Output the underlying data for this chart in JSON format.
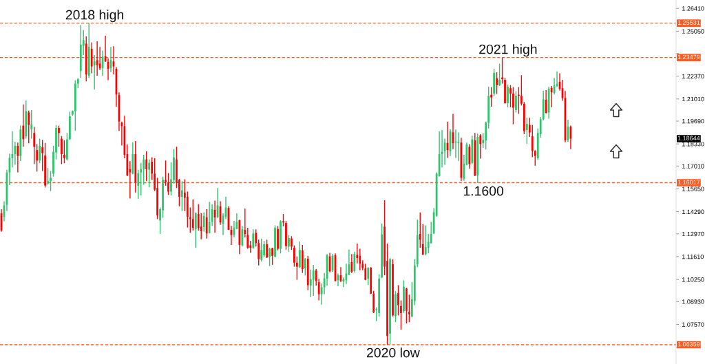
{
  "chart_data": {
    "type": "candlestick",
    "categories": [
      null,
      null,
      null,
      null,
      null,
      null,
      null,
      null,
      null,
      null,
      null,
      null,
      null,
      null,
      null,
      null,
      null,
      null,
      null,
      null,
      null,
      null,
      null,
      null,
      null,
      null,
      null,
      null,
      null,
      null,
      null,
      null,
      null,
      null,
      null,
      null,
      null,
      null,
      null,
      null,
      null,
      null,
      null,
      null,
      null,
      null,
      null,
      null,
      null,
      null,
      null,
      null,
      null,
      null,
      null,
      null,
      null,
      null,
      null,
      null,
      null,
      null,
      null,
      null,
      null,
      null,
      null,
      null,
      null,
      null,
      null,
      null,
      null,
      null,
      null,
      null,
      null,
      null,
      null,
      null,
      null,
      null,
      null,
      null,
      null,
      null,
      null,
      null,
      null,
      null,
      null,
      null,
      null,
      null,
      null,
      null,
      null,
      null,
      null,
      null,
      null,
      null,
      null,
      null,
      null,
      null,
      null,
      null,
      null,
      null,
      null,
      null,
      null,
      null,
      null,
      null,
      null,
      null,
      null,
      null,
      null,
      null,
      null,
      null,
      null,
      null,
      null,
      null,
      null,
      null,
      null,
      null,
      null,
      null,
      null,
      null,
      null,
      null,
      null,
      null,
      null,
      null,
      null,
      null,
      null,
      null,
      null,
      null,
      null,
      null,
      null,
      null,
      null,
      null,
      null,
      null,
      null,
      null,
      null,
      null,
      null,
      null,
      null,
      null,
      null,
      null,
      null,
      null,
      null,
      null,
      null,
      null,
      null,
      null,
      null,
      null,
      null,
      null,
      null,
      null,
      null,
      null,
      null,
      null,
      null,
      null,
      null,
      null,
      null,
      null,
      null,
      null,
      null,
      null,
      null,
      null,
      null,
      null,
      null,
      null,
      null,
      null,
      null,
      null,
      null,
      null,
      null,
      null,
      null,
      null,
      null,
      null,
      null,
      null,
      null,
      null,
      null,
      null,
      null,
      null,
      null,
      null,
      null,
      null,
      null,
      null,
      null,
      null,
      null,
      null,
      null,
      null,
      null,
      null,
      null,
      null,
      null,
      null,
      null,
      null,
      null,
      null,
      null,
      null,
      null,
      null,
      null
    ],
    "ohlc": [
      [
        1.1419,
        1.1444,
        1.131,
        1.1317
      ],
      [
        1.1399,
        1.1491,
        1.1372,
        1.1467
      ],
      [
        1.147,
        1.1679,
        1.1433,
        1.1663
      ],
      [
        1.1663,
        1.1775,
        1.1588,
        1.175
      ],
      [
        1.1748,
        1.1909,
        1.1693,
        1.1772
      ],
      [
        1.1772,
        1.1846,
        1.1709,
        1.1822
      ],
      [
        1.1822,
        1.1841,
        1.1663,
        1.1761
      ],
      [
        1.1761,
        1.1942,
        1.1731,
        1.1919
      ],
      [
        1.1942,
        1.2069,
        1.1816,
        1.1861
      ],
      [
        1.1878,
        1.2092,
        1.1864,
        1.2029
      ],
      [
        1.2021,
        1.2032,
        1.1837,
        1.1946
      ],
      [
        1.1921,
        1.2035,
        1.1864,
        1.1949
      ],
      [
        1.1898,
        1.1935,
        1.1713,
        1.1816
      ],
      [
        1.1796,
        1.1832,
        1.1668,
        1.1734
      ],
      [
        1.1734,
        1.1864,
        1.1718,
        1.1822
      ],
      [
        1.1813,
        1.1857,
        1.1672,
        1.1778
      ],
      [
        1.1764,
        1.1839,
        1.1573,
        1.1585
      ],
      [
        1.1597,
        1.1689,
        1.159,
        1.1611
      ],
      [
        1.1611,
        1.1672,
        1.1552,
        1.1631
      ],
      [
        1.1656,
        1.1822,
        1.1638,
        1.1786
      ],
      [
        1.1782,
        1.1946,
        1.1741,
        1.1928
      ],
      [
        1.1928,
        1.1942,
        1.1816,
        1.1898
      ],
      [
        1.1864,
        1.188,
        1.1713,
        1.1772
      ],
      [
        1.1768,
        1.1854,
        1.1718,
        1.1748
      ],
      [
        1.1741,
        1.1898,
        1.1734,
        1.186
      ],
      [
        1.1861,
        1.2025,
        1.1857,
        1.1998
      ],
      [
        1.2008,
        1.2032,
        1.2001,
        1.2029
      ],
      [
        1.2028,
        1.2213,
        1.1912,
        1.2192
      ],
      [
        1.2192,
        1.2226,
        1.2165,
        1.2219
      ],
      [
        1.2267,
        1.2541,
        1.2226,
        1.2425
      ],
      [
        1.2418,
        1.2513,
        1.2363,
        1.2452
      ],
      [
        1.2431,
        1.2475,
        1.2206,
        1.2247
      ],
      [
        1.224,
        1.25531,
        1.2226,
        1.2411
      ],
      [
        1.24,
        1.2438,
        1.2254,
        1.2295
      ],
      [
        1.2302,
        1.2363,
        1.2158,
        1.2325
      ],
      [
        1.2333,
        1.2445,
        1.224,
        1.2302
      ],
      [
        1.2312,
        1.2411,
        1.2274,
        1.2284
      ],
      [
        1.2284,
        1.239,
        1.224,
        1.2352
      ],
      [
        1.2356,
        1.2479,
        1.2322,
        1.2325
      ],
      [
        1.2322,
        1.2343,
        1.2213,
        1.2281
      ],
      [
        1.2284,
        1.2411,
        1.226,
        1.2333
      ],
      [
        1.2325,
        1.2415,
        1.2247,
        1.2295
      ],
      [
        1.2281,
        1.2291,
        1.2055,
        1.2128
      ],
      [
        1.2124,
        1.214,
        1.1912,
        1.1966
      ],
      [
        1.196,
        1.1966,
        1.1823,
        1.1939
      ],
      [
        1.1939,
        1.2001,
        1.1748,
        1.1768
      ],
      [
        1.1772,
        1.183,
        1.1641,
        1.1645
      ],
      [
        1.1682,
        1.173,
        1.1508,
        1.1663
      ],
      [
        1.1656,
        1.1843,
        1.1652,
        1.1772
      ],
      [
        1.1772,
        1.185,
        1.1543,
        1.1604
      ],
      [
        1.1584,
        1.1679,
        1.1506,
        1.1659
      ],
      [
        1.1663,
        1.172,
        1.1526,
        1.1683
      ],
      [
        1.1682,
        1.1768,
        1.159,
        1.1741
      ],
      [
        1.1741,
        1.1789,
        1.1611,
        1.1682
      ],
      [
        1.1679,
        1.1741,
        1.1574,
        1.172
      ],
      [
        1.1727,
        1.1753,
        1.1618,
        1.1656
      ],
      [
        1.1656,
        1.1748,
        1.1552,
        1.156
      ],
      [
        1.157,
        1.1631,
        1.1385,
        1.1406
      ],
      [
        1.1376,
        1.1454,
        1.1296,
        1.1444
      ],
      [
        1.1437,
        1.1638,
        1.1392,
        1.162
      ],
      [
        1.1618,
        1.1734,
        1.1584,
        1.1604
      ],
      [
        1.1601,
        1.1659,
        1.1529,
        1.1549
      ],
      [
        1.1549,
        1.1724,
        1.1526,
        1.1622
      ],
      [
        1.1618,
        1.1802,
        1.1597,
        1.1753
      ],
      [
        1.1741,
        1.1816,
        1.157,
        1.1601
      ],
      [
        1.1618,
        1.1625,
        1.1461,
        1.1518
      ],
      [
        1.1518,
        1.1611,
        1.1433,
        1.1556
      ],
      [
        1.1543,
        1.1622,
        1.1433,
        1.1512
      ],
      [
        1.1518,
        1.1549,
        1.1335,
        1.1399
      ],
      [
        1.1395,
        1.1454,
        1.1303,
        1.1385
      ],
      [
        1.1385,
        1.1502,
        1.1317,
        1.1333
      ],
      [
        1.1324,
        1.1426,
        1.1214,
        1.1419
      ],
      [
        1.1415,
        1.1474,
        1.1317,
        1.1333
      ],
      [
        1.134,
        1.1419,
        1.1265,
        1.1313
      ],
      [
        1.1337,
        1.1426,
        1.131,
        1.1403
      ],
      [
        1.1395,
        1.1444,
        1.1269,
        1.1299
      ],
      [
        1.1301,
        1.1488,
        1.1299,
        1.1368
      ],
      [
        1.1368,
        1.1474,
        1.1344,
        1.1444
      ],
      [
        1.144,
        1.1495,
        1.1303,
        1.1395
      ],
      [
        1.1395,
        1.157,
        1.1392,
        1.1467
      ],
      [
        1.1461,
        1.1491,
        1.1351,
        1.1365
      ],
      [
        1.1358,
        1.1419,
        1.129,
        1.1406
      ],
      [
        1.1399,
        1.1518,
        1.1385,
        1.1454
      ],
      [
        1.1451,
        1.1461,
        1.132,
        1.1321
      ],
      [
        1.1321,
        1.1344,
        1.1231,
        1.129
      ],
      [
        1.129,
        1.1374,
        1.1276,
        1.1331
      ],
      [
        1.1326,
        1.1419,
        1.1324,
        1.1368
      ],
      [
        1.1378,
        1.1381,
        1.1176,
        1.1231
      ],
      [
        1.1228,
        1.1344,
        1.1221,
        1.1324
      ],
      [
        1.1321,
        1.1447,
        1.1276,
        1.1296
      ],
      [
        1.129,
        1.1333,
        1.1208,
        1.1214
      ],
      [
        1.1228,
        1.1255,
        1.1183,
        1.1214
      ],
      [
        1.1212,
        1.1324,
        1.1208,
        1.1299
      ],
      [
        1.1303,
        1.1324,
        1.1221,
        1.1242
      ],
      [
        1.1242,
        1.1262,
        1.1109,
        1.1146
      ],
      [
        1.1142,
        1.1269,
        1.1132,
        1.1201
      ],
      [
        1.1169,
        1.1255,
        1.116,
        1.1235
      ],
      [
        1.1235,
        1.1262,
        1.1153,
        1.1156
      ],
      [
        1.116,
        1.1214,
        1.1105,
        1.1208
      ],
      [
        1.1212,
        1.1214,
        1.1112,
        1.1166
      ],
      [
        1.116,
        1.1348,
        1.1157,
        1.1333
      ],
      [
        1.1326,
        1.1344,
        1.1198,
        1.1208
      ],
      [
        1.1208,
        1.1378,
        1.118,
        1.1372
      ],
      [
        1.1372,
        1.1415,
        1.1342,
        1.1365
      ],
      [
        1.1362,
        1.1374,
        1.1203,
        1.1224
      ],
      [
        1.1221,
        1.129,
        1.1191,
        1.1272
      ],
      [
        1.1269,
        1.1283,
        1.1201,
        1.1221
      ],
      [
        1.1214,
        1.1228,
        1.1101,
        1.1125
      ],
      [
        1.1125,
        1.1162,
        1.1023,
        1.1101
      ],
      [
        1.1098,
        1.1251,
        1.1094,
        1.1201
      ],
      [
        1.1198,
        1.1231,
        1.1064,
        1.1087
      ],
      [
        1.1091,
        1.1153,
        1.1048,
        1.1146
      ],
      [
        1.1149,
        1.1166,
        1.0961,
        1.0991
      ],
      [
        1.0989,
        1.1084,
        1.092,
        1.1027
      ],
      [
        1.1023,
        1.1112,
        1.0927,
        1.1078
      ],
      [
        1.1078,
        1.1087,
        1.0989,
        1.1016
      ],
      [
        1.1009,
        1.103,
        1.09,
        1.0937
      ],
      [
        1.0937,
        1.1002,
        1.0875,
        1.0978
      ],
      [
        1.0978,
        1.1064,
        1.0937,
        1.1032
      ],
      [
        1.103,
        1.1176,
        1.0989,
        1.1171
      ],
      [
        1.1162,
        1.1183,
        1.1068,
        1.1073
      ],
      [
        1.1078,
        1.1176,
        1.1071,
        1.1166
      ],
      [
        1.1169,
        1.118,
        1.1013,
        1.1016
      ],
      [
        1.102,
        1.106,
        1.0985,
        1.105
      ],
      [
        1.105,
        1.1098,
        1.1009,
        1.1016
      ],
      [
        1.1013,
        1.1037,
        1.0979,
        1.1026
      ],
      [
        1.102,
        1.1119,
        1.0998,
        1.106
      ],
      [
        1.1054,
        1.1203,
        1.105,
        1.1115
      ],
      [
        1.1128,
        1.1176,
        1.1064,
        1.1071
      ],
      [
        1.1075,
        1.119,
        1.1067,
        1.1176
      ],
      [
        1.1173,
        1.1239,
        1.1121,
        1.1153
      ],
      [
        1.1166,
        1.1208,
        1.108,
        1.1119
      ],
      [
        1.1119,
        1.1139,
        1.108,
        1.1091
      ],
      [
        1.1091,
        1.1119,
        1.102,
        1.1023
      ],
      [
        1.103,
        1.1098,
        1.0993,
        1.1095
      ],
      [
        1.1095,
        1.1098,
        1.0938,
        1.0941
      ],
      [
        1.0941,
        1.0957,
        1.0825,
        1.0829
      ],
      [
        1.0842,
        1.0859,
        1.0777,
        1.0848
      ],
      [
        1.0825,
        1.1057,
        1.0804,
        1.103
      ],
      [
        1.1037,
        1.1358,
        1.1034,
        1.1294
      ],
      [
        1.134,
        1.1497,
        1.105,
        1.1101
      ],
      [
        1.1135,
        1.1239,
        1.06359,
        1.0688
      ],
      [
        1.0702,
        1.1153,
        1.0638,
        1.1146
      ],
      [
        1.1116,
        1.1146,
        1.0804,
        1.0811
      ],
      [
        1.0807,
        1.0955,
        1.077,
        1.0937
      ],
      [
        1.0944,
        1.0991,
        1.0811,
        1.0872
      ],
      [
        1.0866,
        1.09,
        1.0726,
        1.0825
      ],
      [
        1.0836,
        1.102,
        1.0825,
        1.0982
      ],
      [
        1.0971,
        1.0975,
        1.0763,
        1.0838
      ],
      [
        1.0831,
        1.0934,
        1.077,
        1.0818
      ],
      [
        1.0804,
        1.1009,
        1.08,
        1.0907
      ],
      [
        1.0896,
        1.1146,
        1.0872,
        1.1108
      ],
      [
        1.1115,
        1.1381,
        1.1098,
        1.129
      ],
      [
        1.1296,
        1.1424,
        1.1214,
        1.1262
      ],
      [
        1.1235,
        1.1354,
        1.1171,
        1.1173
      ],
      [
        1.1176,
        1.1348,
        1.1169,
        1.1218
      ],
      [
        1.1214,
        1.1296,
        1.118,
        1.1249
      ],
      [
        1.1242,
        1.1368,
        1.1239,
        1.1296
      ],
      [
        1.1301,
        1.145,
        1.1296,
        1.1426
      ],
      [
        1.1406,
        1.1663,
        1.1399,
        1.1656
      ],
      [
        1.1641,
        1.1909,
        1.1638,
        1.1772
      ],
      [
        1.1772,
        1.1916,
        1.1693,
        1.1786
      ],
      [
        1.1789,
        1.1864,
        1.1709,
        1.1841
      ],
      [
        1.1839,
        1.1966,
        1.175,
        1.1796
      ],
      [
        1.1789,
        1.1921,
        1.1761,
        1.1908
      ],
      [
        1.1902,
        1.2012,
        1.1802,
        1.1837
      ],
      [
        1.1841,
        1.1919,
        1.175,
        1.1848
      ],
      [
        1.1837,
        1.1901,
        1.1731,
        1.1843
      ],
      [
        1.1841,
        1.1871,
        1.1611,
        1.1631
      ],
      [
        1.1625,
        1.1768,
        1.1613,
        1.1716
      ],
      [
        1.1709,
        1.1841,
        1.1704,
        1.183
      ],
      [
        1.1816,
        1.1832,
        1.1686,
        1.1713
      ],
      [
        1.172,
        1.1882,
        1.1713,
        1.186
      ],
      [
        1.1854,
        1.1898,
        1.1641,
        1.1645
      ],
      [
        1.1645,
        1.1894,
        1.16,
        1.1875
      ],
      [
        1.1884,
        1.1891,
        1.1745,
        1.1832
      ],
      [
        1.1837,
        1.1898,
        1.1809,
        1.1857
      ],
      [
        1.1853,
        1.1966,
        1.18,
        1.196
      ],
      [
        1.196,
        1.2174,
        1.1925,
        1.212
      ],
      [
        1.2126,
        1.2172,
        1.2055,
        1.211
      ],
      [
        1.2133,
        1.2281,
        1.2117,
        1.2256
      ],
      [
        1.2224,
        1.226,
        1.2131,
        1.2183
      ],
      [
        1.2183,
        1.2312,
        1.2178,
        1.2215
      ],
      [
        1.2229,
        1.23479,
        1.2192,
        1.2219
      ],
      [
        1.2215,
        1.2226,
        1.2073,
        1.2076
      ],
      [
        1.2076,
        1.2188,
        1.2051,
        1.2174
      ],
      [
        1.2165,
        1.2183,
        1.2051,
        1.2133
      ],
      [
        1.2133,
        1.2172,
        1.195,
        1.2049
      ],
      [
        1.2035,
        1.2148,
        1.2021,
        1.212
      ],
      [
        1.2126,
        1.2172,
        1.2012,
        1.212
      ],
      [
        1.212,
        1.2243,
        1.2062,
        1.2073
      ],
      [
        1.2072,
        1.2083,
        1.1891,
        1.1909
      ],
      [
        1.1916,
        1.199,
        1.1832,
        1.1953
      ],
      [
        1.1946,
        1.199,
        1.1875,
        1.1901
      ],
      [
        1.1878,
        1.1946,
        1.1754,
        1.1791
      ],
      [
        1.1791,
        1.1796,
        1.1703,
        1.1761
      ],
      [
        1.1748,
        1.1925,
        1.1738,
        1.1898
      ],
      [
        1.1891,
        1.1994,
        1.1871,
        1.198
      ],
      [
        1.198,
        1.2151,
        1.1973,
        1.2099
      ],
      [
        1.2096,
        1.2154,
        1.2014,
        1.2018
      ],
      [
        1.2021,
        1.2174,
        1.1983,
        1.2161
      ],
      [
        1.2167,
        1.2178,
        1.2051,
        1.214
      ],
      [
        1.2137,
        1.2226,
        1.2128,
        1.2181
      ],
      [
        1.2178,
        1.2265,
        1.2172,
        1.2192
      ],
      [
        1.2203,
        1.2254,
        1.2151,
        1.2162
      ],
      [
        1.2165,
        1.2215,
        1.209,
        1.2106
      ],
      [
        1.2107,
        1.2148,
        1.1843,
        1.1854
      ],
      [
        1.1854,
        1.1977,
        1.1846,
        1.1936
      ],
      [
        1.1936,
        1.1942,
        1.1802,
        1.18644
      ],
      null,
      null,
      null,
      null,
      null,
      null,
      null,
      null,
      null,
      null,
      null,
      null,
      null,
      null,
      null,
      null,
      null,
      null,
      null,
      null,
      null,
      null,
      null,
      null,
      null,
      null,
      null,
      null,
      null,
      null,
      null,
      null,
      null,
      null,
      null,
      null,
      null,
      null
    ],
    "colors": [
      "#ff0000",
      "#2dc66a",
      "#2dc66a",
      "#2dc66a",
      "#2dc66a",
      "#2dc66a",
      "#ff0000",
      "#2dc66a",
      "#ff0000",
      "#2dc66a",
      "#ff0000",
      "#2dc66a",
      "#ff0000",
      "#ff0000",
      "#2dc66a",
      "#ff0000",
      "#ff0000",
      "#2dc66a",
      "#2dc66a",
      "#2dc66a",
      "#2dc66a",
      "#ff0000",
      "#ff0000",
      "#ff0000",
      "#2dc66a",
      "#2dc66a",
      "#2dc66a",
      "#2dc66a",
      "#2dc66a",
      "#2dc66a",
      "#2dc66a",
      "#ff0000",
      "#2dc66a",
      "#ff0000",
      "#2dc66a",
      "#ff0000",
      "#ff0000",
      "#2dc66a",
      "#ff0000",
      "#ff0000",
      "#2dc66a",
      "#ff0000",
      "#ff0000",
      "#ff0000",
      "#ff0000",
      "#ff0000",
      "#ff0000",
      "#ff0000",
      "#2dc66a",
      "#ff0000",
      "#2dc66a",
      "#2dc66a",
      "#2dc66a",
      "#ff0000",
      "#2dc66a",
      "#ff0000",
      "#ff0000",
      "#ff0000",
      "#2dc66a",
      "#2dc66a",
      "#ff0000",
      "#ff0000",
      "#2dc66a",
      "#2dc66a",
      "#ff0000",
      "#ff0000",
      "#2dc66a",
      "#ff0000",
      "#ff0000",
      "#ff0000",
      "#ff0000",
      "#2dc66a",
      "#ff0000",
      "#ff0000",
      "#2dc66a",
      "#ff0000",
      "#2dc66a",
      "#2dc66a",
      "#ff0000",
      "#2dc66a",
      "#ff0000",
      "#2dc66a",
      "#2dc66a",
      "#ff0000",
      "#ff0000",
      "#2dc66a",
      "#2dc66a",
      "#ff0000",
      "#2dc66a",
      "#ff0000",
      "#ff0000",
      "#ff0000",
      "#2dc66a",
      "#ff0000",
      "#ff0000",
      "#2dc66a",
      "#2dc66a",
      "#ff0000",
      "#2dc66a",
      "#ff0000",
      "#2dc66a",
      "#ff0000",
      "#2dc66a",
      "#ff0000",
      "#ff0000",
      "#2dc66a",
      "#ff0000",
      "#ff0000",
      "#ff0000",
      "#2dc66a",
      "#ff0000",
      "#2dc66a",
      "#ff0000",
      "#2dc66a",
      "#2dc66a",
      "#ff0000",
      "#ff0000",
      "#2dc66a",
      "#2dc66a",
      "#2dc66a",
      "#ff0000",
      "#2dc66a",
      "#ff0000",
      "#2dc66a",
      "#ff0000",
      "#2dc66a",
      "#2dc66a",
      "#2dc66a",
      "#ff0000",
      "#2dc66a",
      "#ff0000",
      "#ff0000",
      "#ff0000",
      "#ff0000",
      "#2dc66a",
      "#ff0000",
      "#ff0000",
      "#2dc66a",
      "#2dc66a",
      "#2dc66a",
      "#ff0000",
      "#ff0000",
      "#2dc66a",
      "#ff0000",
      "#2dc66a",
      "#ff0000",
      "#ff0000",
      "#2dc66a",
      "#ff0000",
      "#ff0000",
      "#2dc66a",
      "#2dc66a",
      "#2dc66a",
      "#ff0000",
      "#ff0000",
      "#2dc66a",
      "#2dc66a",
      "#2dc66a",
      "#2dc66a",
      "#2dc66a",
      "#2dc66a",
      "#2dc66a",
      "#2dc66a",
      "#ff0000",
      "#2dc66a",
      "#ff0000",
      "#2dc66a",
      "#2dc66a",
      "#ff0000",
      "#2dc66a",
      "#2dc66a",
      "#ff0000",
      "#2dc66a",
      "#ff0000",
      "#2dc66a",
      "#ff0000",
      "#2dc66a",
      "#2dc66a",
      "#2dc66a",
      "#ff0000",
      "#2dc66a",
      "#ff0000",
      "#2dc66a",
      "#ff0000",
      "#ff0000",
      "#2dc66a",
      "#ff0000",
      "#ff0000",
      "#2dc66a",
      "#ff0000",
      "#ff0000",
      "#ff0000",
      "#2dc66a",
      "#ff0000",
      "#ff0000",
      "#ff0000",
      "#2dc66a",
      "#2dc66a",
      "#2dc66a",
      "#ff0000",
      "#2dc66a",
      "#ff0000",
      "#2dc66a",
      "#2dc66a",
      "#ff0000",
      "#ff0000",
      "#ff0000",
      "#2dc66a",
      "#ff0000",
      null,
      null,
      null,
      null,
      null,
      null,
      null,
      null,
      null,
      null,
      null,
      null,
      null,
      null,
      null,
      null,
      null,
      null,
      null,
      null,
      null,
      null,
      null,
      null,
      null,
      null,
      null,
      null,
      null,
      null,
      null,
      null,
      null,
      null,
      null,
      null,
      null,
      null
    ],
    "ylim": [
      1.0521,
      1.2691
    ],
    "yticks": [
      {
        "value": 1.2641,
        "label": "1.26410"
      },
      {
        "value": 1.2505,
        "label": "1.25050"
      },
      {
        "value": 1.2372,
        "label": null
      },
      {
        "value": 1.2237,
        "label": "1.22370"
      },
      {
        "value": 1.2101,
        "label": "1.21010"
      },
      {
        "value": 1.1969,
        "label": "1.19690"
      },
      {
        "value": 1.1833,
        "label": "1.18330"
      },
      {
        "value": 1.1701,
        "label": "1.17010"
      },
      {
        "value": 1.1565,
        "label": "1.15650"
      },
      {
        "value": 1.1429,
        "label": "1.14290"
      },
      {
        "value": 1.1297,
        "label": "1.12970"
      },
      {
        "value": 1.1161,
        "label": "1.11610"
      },
      {
        "value": 1.1025,
        "label": "1.10250"
      },
      {
        "value": 1.0893,
        "label": "1.08930"
      },
      {
        "value": 1.0757,
        "label": "1.07570"
      },
      {
        "value": 1.0622,
        "label": null
      }
    ],
    "tick_labels": "y",
    "ref_lines": [
      {
        "axis": "y",
        "value": 1.25531,
        "label": "1.25531",
        "color": "#ff5a1f",
        "line_style": "dashed"
      },
      {
        "axis": "y",
        "value": 1.23479,
        "label": "1.23479",
        "color": "#ff5a1f",
        "line_style": "dashed"
      },
      {
        "axis": "y",
        "value": 1.16017,
        "label": "1.16017",
        "color": "#ff5a1f",
        "line_style": "dashed"
      },
      {
        "axis": "y",
        "value": 1.06359,
        "label": "1.06359",
        "color": "#ff5a1f",
        "line_style": "dashed"
      }
    ],
    "annotations": [
      {
        "text": "2018 high",
        "y": 1.25531
      },
      {
        "text": "2021 high",
        "y": 1.23479
      },
      {
        "text": "1.1600",
        "y": 1.16
      },
      {
        "text": "2020 low",
        "y": 1.06359
      },
      {
        "text": "1.18644",
        "y": 1.18644
      }
    ]
  }
}
